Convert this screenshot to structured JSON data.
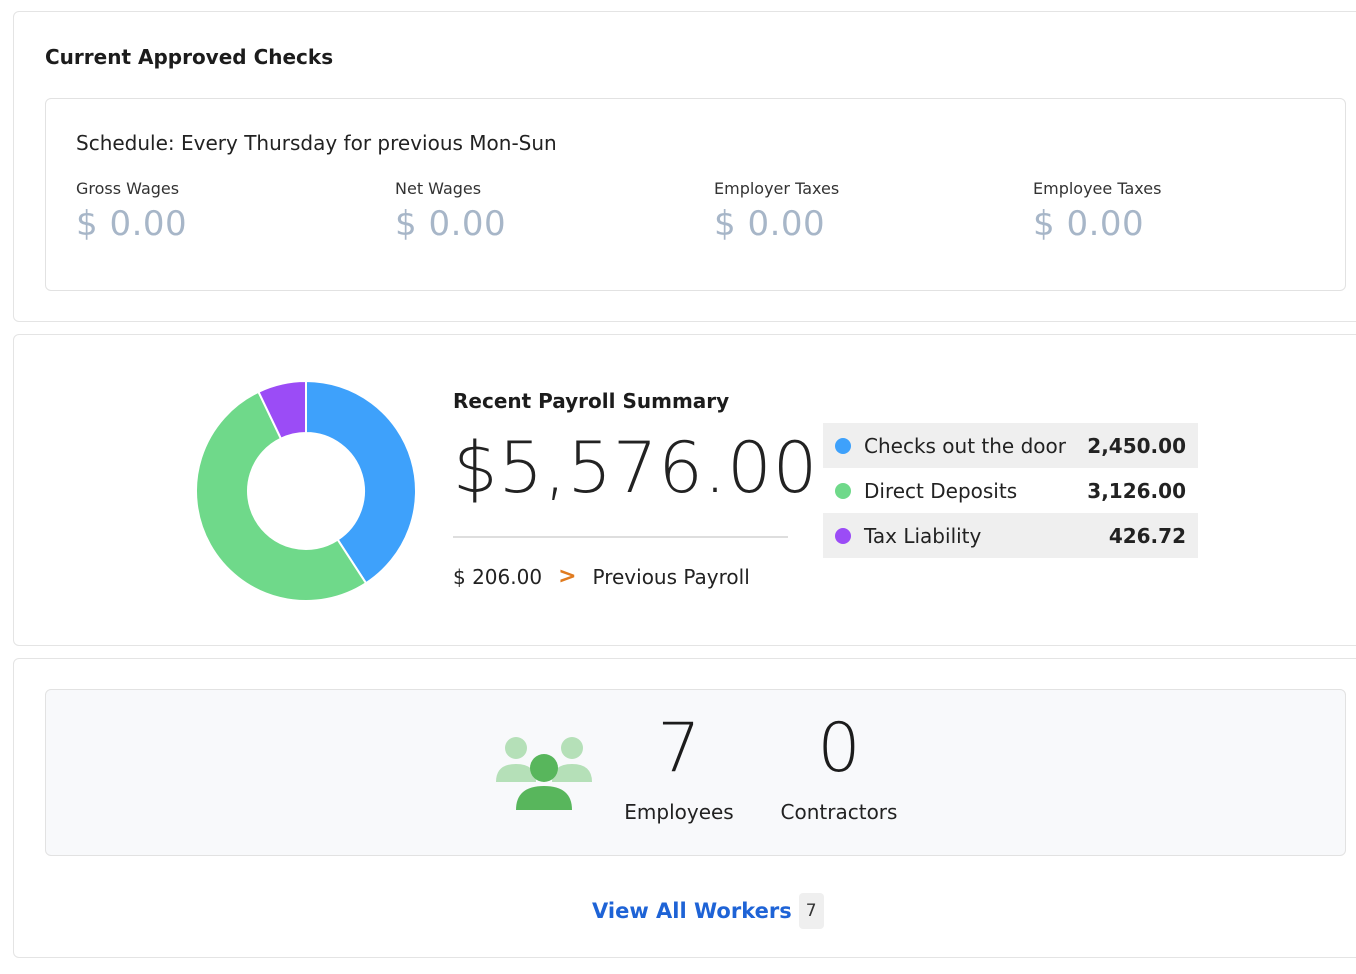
{
  "approved": {
    "title": "Current Approved Checks",
    "schedule": "Schedule: Every Thursday for previous Mon-Sun",
    "metrics": [
      {
        "label": "Gross Wages",
        "value": "$ 0.00"
      },
      {
        "label": "Net Wages",
        "value": "$ 0.00"
      },
      {
        "label": "Employer Taxes",
        "value": "$ 0.00"
      },
      {
        "label": "Employee Taxes",
        "value": "$ 0.00"
      }
    ]
  },
  "summary": {
    "title": "Recent Payroll Summary",
    "amount": "$5,576.00",
    "previous_amount": "$ 206.00",
    "previous_chevron": ">",
    "previous_label": "Previous Payroll",
    "legend": [
      {
        "name": "Checks out the door",
        "value": "2,450.00",
        "color": "#3ea1fb"
      },
      {
        "name": "Direct Deposits",
        "value": "3,126.00",
        "color": "#6fd98a"
      },
      {
        "name": "Tax Liability",
        "value": "426.72",
        "color": "#9b4cf6"
      }
    ]
  },
  "chart_data": {
    "type": "pie",
    "categories": [
      "Checks out the door",
      "Direct Deposits",
      "Tax Liability"
    ],
    "values": [
      2450.0,
      3126.0,
      426.72
    ],
    "colors": [
      "#3ea1fb",
      "#6fd98a",
      "#9b4cf6"
    ],
    "donut": true
  },
  "workers": {
    "icon": "people-group-icon",
    "employees_count": "7",
    "employees_label": "Employees",
    "contractors_count": "0",
    "contractors_label": "Contractors",
    "view_all_label": "View All Workers",
    "view_all_badge": "7"
  }
}
